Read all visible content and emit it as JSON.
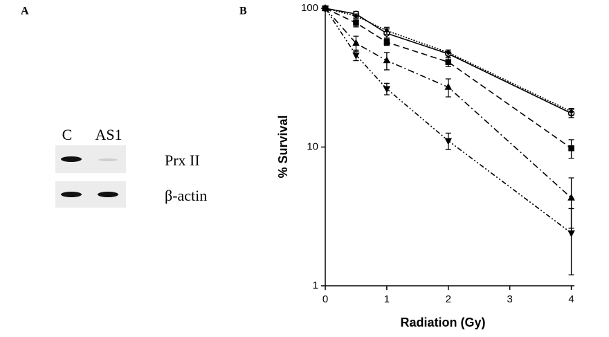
{
  "panel_a": {
    "label": "A",
    "lanes": [
      "C",
      "AS1"
    ],
    "bands": [
      "Prx II",
      "β-actin"
    ]
  },
  "chart_data": {
    "type": "line",
    "label": "B",
    "xlabel": "Radiation (Gy)",
    "ylabel": "% Survival",
    "x": [
      0,
      0.5,
      1,
      2,
      4
    ],
    "xlim": [
      0,
      4.05
    ],
    "xticks": [
      0,
      1,
      2,
      3,
      4
    ],
    "ylim": [
      1,
      100
    ],
    "yticks": [
      1,
      10,
      100
    ],
    "log_y": true,
    "series": [
      {
        "color": "#000000",
        "marker": "circle-open",
        "dash": "none",
        "values": [
          100,
          91,
          66,
          47,
          17.5
        ],
        "errors": [
          null,
          4,
          5,
          3,
          1.2
        ]
      },
      {
        "color": "#000000",
        "marker": "dot",
        "dash": "2,2",
        "values": [
          100,
          88,
          69,
          48,
          18
        ],
        "errors": [
          null,
          3,
          4,
          2,
          1
        ]
      },
      {
        "color": "#000000",
        "marker": "square",
        "dash": "9,5",
        "values": [
          100,
          78.5,
          57,
          41,
          9.8
        ],
        "errors": [
          null,
          5,
          3,
          3,
          1.5
        ]
      },
      {
        "color": "#000000",
        "marker": "triangle-up",
        "dash": "9,4,2,4",
        "values": [
          100,
          56,
          42,
          27,
          4.3
        ],
        "errors": [
          null,
          7,
          6,
          4,
          1.7
        ]
      },
      {
        "color": "#000000",
        "marker": "triangle-down",
        "dash": "7,3,2,3,2,3",
        "values": [
          100,
          46,
          26.3,
          11.1,
          2.4
        ],
        "errors": [
          null,
          4,
          2.5,
          1.5,
          1.2
        ]
      }
    ]
  }
}
